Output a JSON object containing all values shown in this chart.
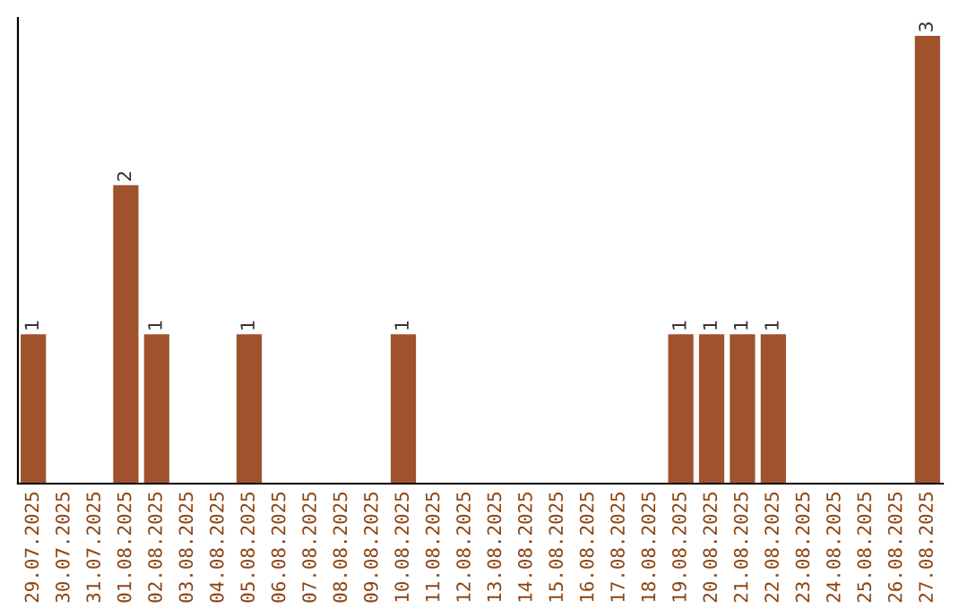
{
  "chart_data": {
    "type": "bar",
    "categories": [
      "29.07.2025",
      "30.07.2025",
      "31.07.2025",
      "01.08.2025",
      "02.08.2025",
      "03.08.2025",
      "04.08.2025",
      "05.08.2025",
      "06.08.2025",
      "07.08.2025",
      "08.08.2025",
      "09.08.2025",
      "10.08.2025",
      "11.08.2025",
      "12.08.2025",
      "13.08.2025",
      "14.08.2025",
      "15.08.2025",
      "16.08.2025",
      "17.08.2025",
      "18.08.2025",
      "19.08.2025",
      "20.08.2025",
      "21.08.2025",
      "22.08.2025",
      "23.08.2025",
      "24.08.2025",
      "25.08.2025",
      "26.08.2025",
      "27.08.2025"
    ],
    "values": [
      1,
      0,
      0,
      2,
      1,
      0,
      0,
      1,
      0,
      0,
      0,
      0,
      1,
      0,
      0,
      0,
      0,
      0,
      0,
      0,
      0,
      1,
      1,
      1,
      1,
      0,
      0,
      0,
      0,
      3
    ],
    "value_labels": [
      "1",
      null,
      null,
      "2",
      "1",
      null,
      null,
      "1",
      null,
      null,
      null,
      null,
      "1",
      null,
      null,
      null,
      null,
      null,
      null,
      null,
      null,
      "1",
      "1",
      "1",
      "1",
      null,
      null,
      null,
      null,
      "3"
    ],
    "color": "#a0522d",
    "ylim": [
      0,
      3.12
    ],
    "tick_labels": "x",
    "grid": false,
    "legend": false
  }
}
